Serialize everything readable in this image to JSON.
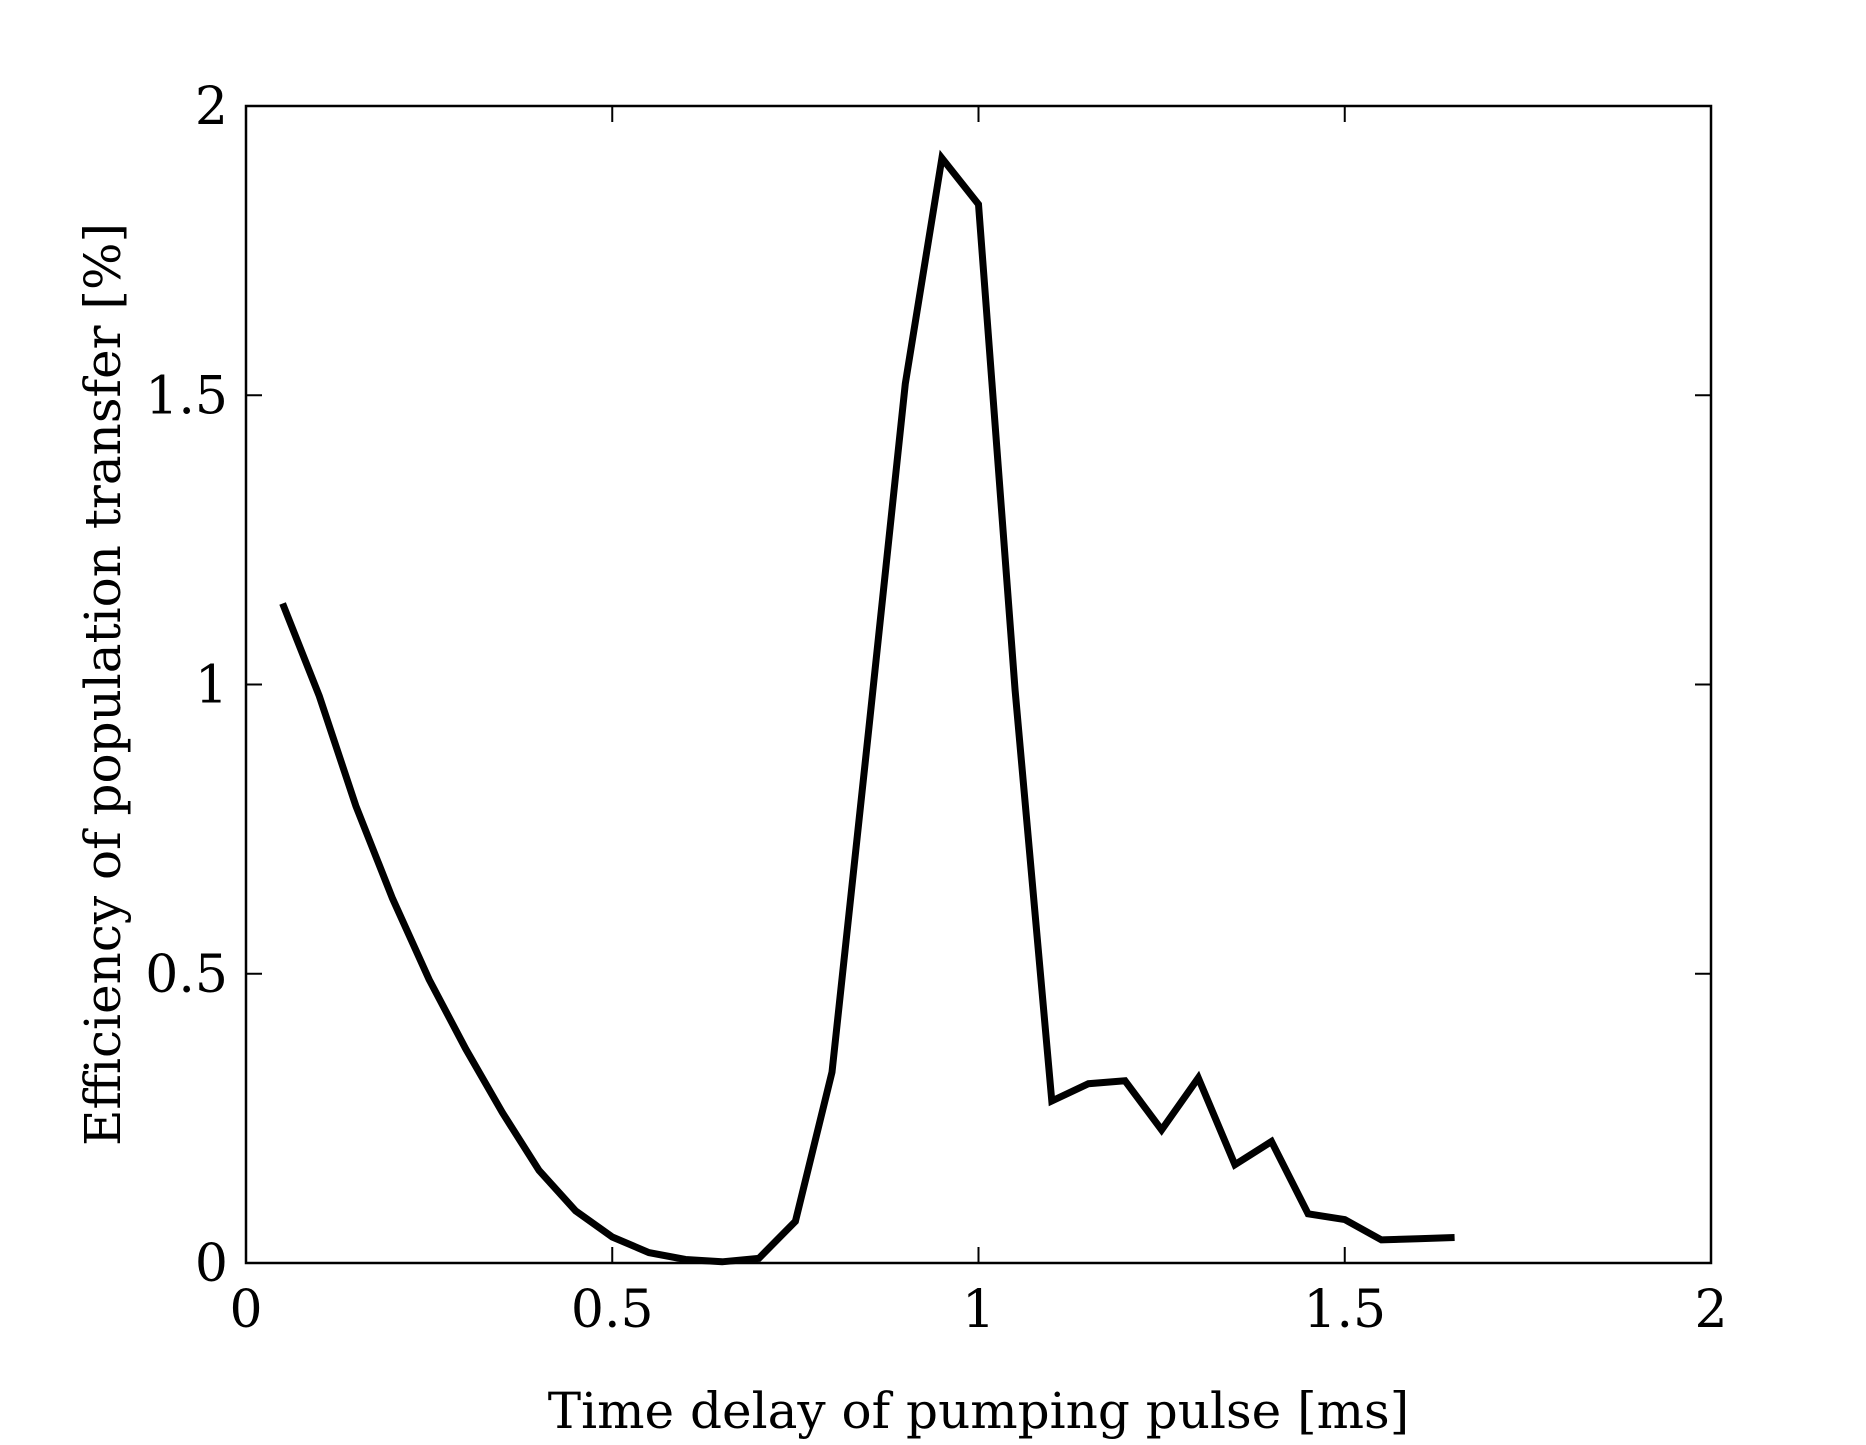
{
  "chart_data": {
    "type": "line",
    "title": "",
    "xlabel": "Time delay of pumping pulse [ms]",
    "ylabel": "Efficiency of population transfer [%]",
    "xlim": [
      0,
      2
    ],
    "ylim": [
      0,
      2
    ],
    "xticks": [
      0,
      0.5,
      1,
      1.5,
      2
    ],
    "xtick_labels": [
      "0",
      "0.5",
      "1",
      "1.5",
      "2"
    ],
    "yticks": [
      0,
      0.5,
      1,
      1.5,
      2
    ],
    "ytick_labels": [
      "0",
      "0.5",
      "1",
      "1.5",
      "2"
    ],
    "grid": false,
    "line_color": "#000000",
    "series": [
      {
        "x": [
          0.05,
          0.1,
          0.15,
          0.2,
          0.25,
          0.3,
          0.35,
          0.4,
          0.45,
          0.5,
          0.55,
          0.6,
          0.65,
          0.7,
          0.75,
          0.8,
          0.85,
          0.9,
          0.95,
          1.0,
          1.05,
          1.1,
          1.15,
          1.2,
          1.25,
          1.3,
          1.35,
          1.4,
          1.45,
          1.5,
          1.55,
          1.6,
          1.65
        ],
        "y": [
          1.14,
          0.98,
          0.79,
          0.63,
          0.49,
          0.37,
          0.26,
          0.16,
          0.09,
          0.045,
          0.018,
          0.006,
          0.002,
          0.008,
          0.072,
          0.33,
          0.92,
          1.52,
          1.91,
          1.83,
          0.99,
          0.28,
          0.31,
          0.315,
          0.23,
          0.32,
          0.17,
          0.21,
          0.085,
          0.075,
          0.04,
          0.042,
          0.044
        ]
      }
    ]
  }
}
